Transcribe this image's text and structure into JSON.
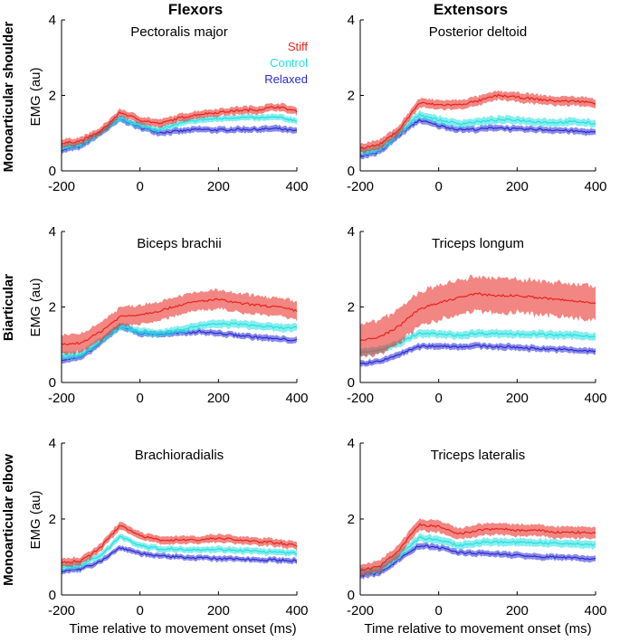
{
  "figure": {
    "columns": [
      "Flexors",
      "Extensors"
    ],
    "rows": [
      "Monoarticular shoulder",
      "Biarticular",
      "Monoarticular elbow"
    ],
    "ylabel": "EMG (au)",
    "xlabel": "Time relative to movement onset (ms)"
  },
  "legend": [
    {
      "name": "Stiff",
      "color": "#e8221c"
    },
    {
      "name": "Control",
      "color": "#22e0e0"
    },
    {
      "name": "Relaxed",
      "color": "#2a2ad6"
    }
  ],
  "chart_data": [
    {
      "type": "line",
      "title": "Pectoralis major",
      "group": "Flexors",
      "row": "Monoarticular shoulder",
      "x": [
        -200,
        -150,
        -100,
        -50,
        0,
        50,
        100,
        150,
        200,
        250,
        300,
        350,
        400
      ],
      "xlim": [
        -200,
        400
      ],
      "ylim": [
        0,
        4
      ],
      "xticks": [
        -200,
        0,
        200,
        400
      ],
      "yticks": [
        0,
        2,
        4
      ],
      "series": [
        {
          "name": "Stiff",
          "values": [
            0.72,
            0.8,
            1.05,
            1.55,
            1.35,
            1.25,
            1.4,
            1.5,
            1.55,
            1.6,
            1.62,
            1.7,
            1.58
          ],
          "band": 0.1
        },
        {
          "name": "Control",
          "values": [
            0.62,
            0.7,
            1.0,
            1.4,
            1.2,
            1.1,
            1.25,
            1.35,
            1.38,
            1.42,
            1.4,
            1.42,
            1.33
          ],
          "band": 0.08
        },
        {
          "name": "Relaxed",
          "values": [
            0.55,
            0.65,
            1.0,
            1.38,
            1.15,
            1.02,
            1.05,
            1.1,
            1.08,
            1.1,
            1.1,
            1.12,
            1.05
          ],
          "band": 0.08
        }
      ]
    },
    {
      "type": "line",
      "title": "Posterior deltoid",
      "group": "Extensors",
      "row": "Monoarticular shoulder",
      "x": [
        -200,
        -150,
        -100,
        -50,
        0,
        50,
        100,
        150,
        200,
        250,
        300,
        350,
        400
      ],
      "xlim": [
        -200,
        400
      ],
      "ylim": [
        0,
        4
      ],
      "xticks": [
        -200,
        0,
        200,
        400
      ],
      "yticks": [
        0,
        2,
        4
      ],
      "series": [
        {
          "name": "Stiff",
          "values": [
            0.6,
            0.7,
            1.1,
            1.8,
            1.75,
            1.75,
            1.85,
            2.0,
            1.95,
            1.9,
            1.85,
            1.85,
            1.8
          ],
          "band": 0.12
        },
        {
          "name": "Control",
          "values": [
            0.5,
            0.58,
            1.0,
            1.5,
            1.35,
            1.25,
            1.3,
            1.35,
            1.35,
            1.3,
            1.28,
            1.3,
            1.25
          ],
          "band": 0.1
        },
        {
          "name": "Relaxed",
          "values": [
            0.4,
            0.5,
            0.95,
            1.35,
            1.2,
            1.1,
            1.1,
            1.15,
            1.1,
            1.1,
            1.08,
            1.05,
            1.02
          ],
          "band": 0.08
        }
      ]
    },
    {
      "type": "line",
      "title": "Biceps brachii",
      "group": "Flexors",
      "row": "Biarticular",
      "x": [
        -200,
        -150,
        -100,
        -50,
        0,
        50,
        100,
        150,
        200,
        250,
        300,
        350,
        400
      ],
      "xlim": [
        -200,
        400
      ],
      "ylim": [
        0,
        4
      ],
      "xticks": [
        -200,
        0,
        200,
        400
      ],
      "yticks": [
        0,
        2,
        4
      ],
      "series": [
        {
          "name": "Stiff",
          "values": [
            1.0,
            1.05,
            1.35,
            1.75,
            1.8,
            1.9,
            2.05,
            2.15,
            2.2,
            2.1,
            2.05,
            2.0,
            1.9
          ],
          "band": 0.25
        },
        {
          "name": "Control",
          "values": [
            0.7,
            0.75,
            1.1,
            1.5,
            1.35,
            1.3,
            1.4,
            1.5,
            1.55,
            1.55,
            1.5,
            1.45,
            1.45
          ],
          "band": 0.1
        },
        {
          "name": "Relaxed",
          "values": [
            0.6,
            0.66,
            1.05,
            1.5,
            1.3,
            1.28,
            1.3,
            1.35,
            1.3,
            1.25,
            1.2,
            1.15,
            1.12
          ],
          "band": 0.08
        }
      ]
    },
    {
      "type": "line",
      "title": "Triceps longum",
      "group": "Extensors",
      "row": "Biarticular",
      "x": [
        -200,
        -150,
        -100,
        -50,
        0,
        50,
        100,
        150,
        200,
        250,
        300,
        350,
        400
      ],
      "xlim": [
        -200,
        400
      ],
      "ylim": [
        0,
        4
      ],
      "xticks": [
        -200,
        0,
        200,
        400
      ],
      "yticks": [
        0,
        2,
        4
      ],
      "series": [
        {
          "name": "Stiff",
          "values": [
            1.1,
            1.2,
            1.5,
            1.95,
            2.1,
            2.25,
            2.35,
            2.3,
            2.3,
            2.25,
            2.2,
            2.15,
            2.12
          ],
          "band": 0.45
        },
        {
          "name": "Control",
          "values": [
            0.8,
            0.85,
            1.05,
            1.3,
            1.28,
            1.25,
            1.3,
            1.3,
            1.28,
            1.28,
            1.25,
            1.25,
            1.22
          ],
          "band": 0.1
        },
        {
          "name": "Relaxed",
          "values": [
            0.5,
            0.55,
            0.75,
            0.95,
            0.97,
            0.95,
            0.97,
            0.95,
            0.93,
            0.9,
            0.88,
            0.85,
            0.82
          ],
          "band": 0.08
        }
      ]
    },
    {
      "type": "line",
      "title": "Brachioradialis",
      "group": "Flexors",
      "row": "Monoarticular elbow",
      "x": [
        -200,
        -150,
        -100,
        -50,
        0,
        50,
        100,
        150,
        200,
        250,
        300,
        350,
        400
      ],
      "xlim": [
        -200,
        400
      ],
      "ylim": [
        0,
        4
      ],
      "xticks": [
        -200,
        0,
        200,
        400
      ],
      "yticks": [
        0,
        2,
        4
      ],
      "series": [
        {
          "name": "Stiff",
          "values": [
            0.85,
            0.9,
            1.25,
            1.85,
            1.55,
            1.45,
            1.45,
            1.45,
            1.5,
            1.45,
            1.4,
            1.38,
            1.3
          ],
          "band": 0.1
        },
        {
          "name": "Control",
          "values": [
            0.72,
            0.78,
            1.05,
            1.55,
            1.3,
            1.22,
            1.2,
            1.2,
            1.2,
            1.18,
            1.15,
            1.12,
            1.1
          ],
          "band": 0.08
        },
        {
          "name": "Relaxed",
          "values": [
            0.62,
            0.68,
            0.9,
            1.25,
            1.1,
            1.02,
            1.0,
            0.98,
            0.95,
            0.95,
            0.93,
            0.92,
            0.9
          ],
          "band": 0.07
        }
      ]
    },
    {
      "type": "line",
      "title": "Triceps lateralis",
      "group": "Extensors",
      "row": "Monoarticular elbow",
      "x": [
        -200,
        -150,
        -100,
        -50,
        0,
        50,
        100,
        150,
        200,
        250,
        300,
        350,
        400
      ],
      "xlim": [
        -200,
        400
      ],
      "ylim": [
        0,
        4
      ],
      "xticks": [
        -200,
        0,
        200,
        400
      ],
      "yticks": [
        0,
        2,
        4
      ],
      "series": [
        {
          "name": "Stiff",
          "values": [
            0.65,
            0.75,
            1.2,
            1.85,
            1.8,
            1.6,
            1.7,
            1.75,
            1.7,
            1.7,
            1.65,
            1.65,
            1.62
          ],
          "band": 0.15
        },
        {
          "name": "Control",
          "values": [
            0.6,
            0.68,
            1.05,
            1.5,
            1.45,
            1.3,
            1.38,
            1.4,
            1.38,
            1.38,
            1.35,
            1.35,
            1.32
          ],
          "band": 0.1
        },
        {
          "name": "Relaxed",
          "values": [
            0.5,
            0.58,
            0.95,
            1.3,
            1.25,
            1.12,
            1.1,
            1.08,
            1.05,
            1.0,
            1.0,
            0.98,
            0.95
          ],
          "band": 0.08
        }
      ]
    }
  ]
}
